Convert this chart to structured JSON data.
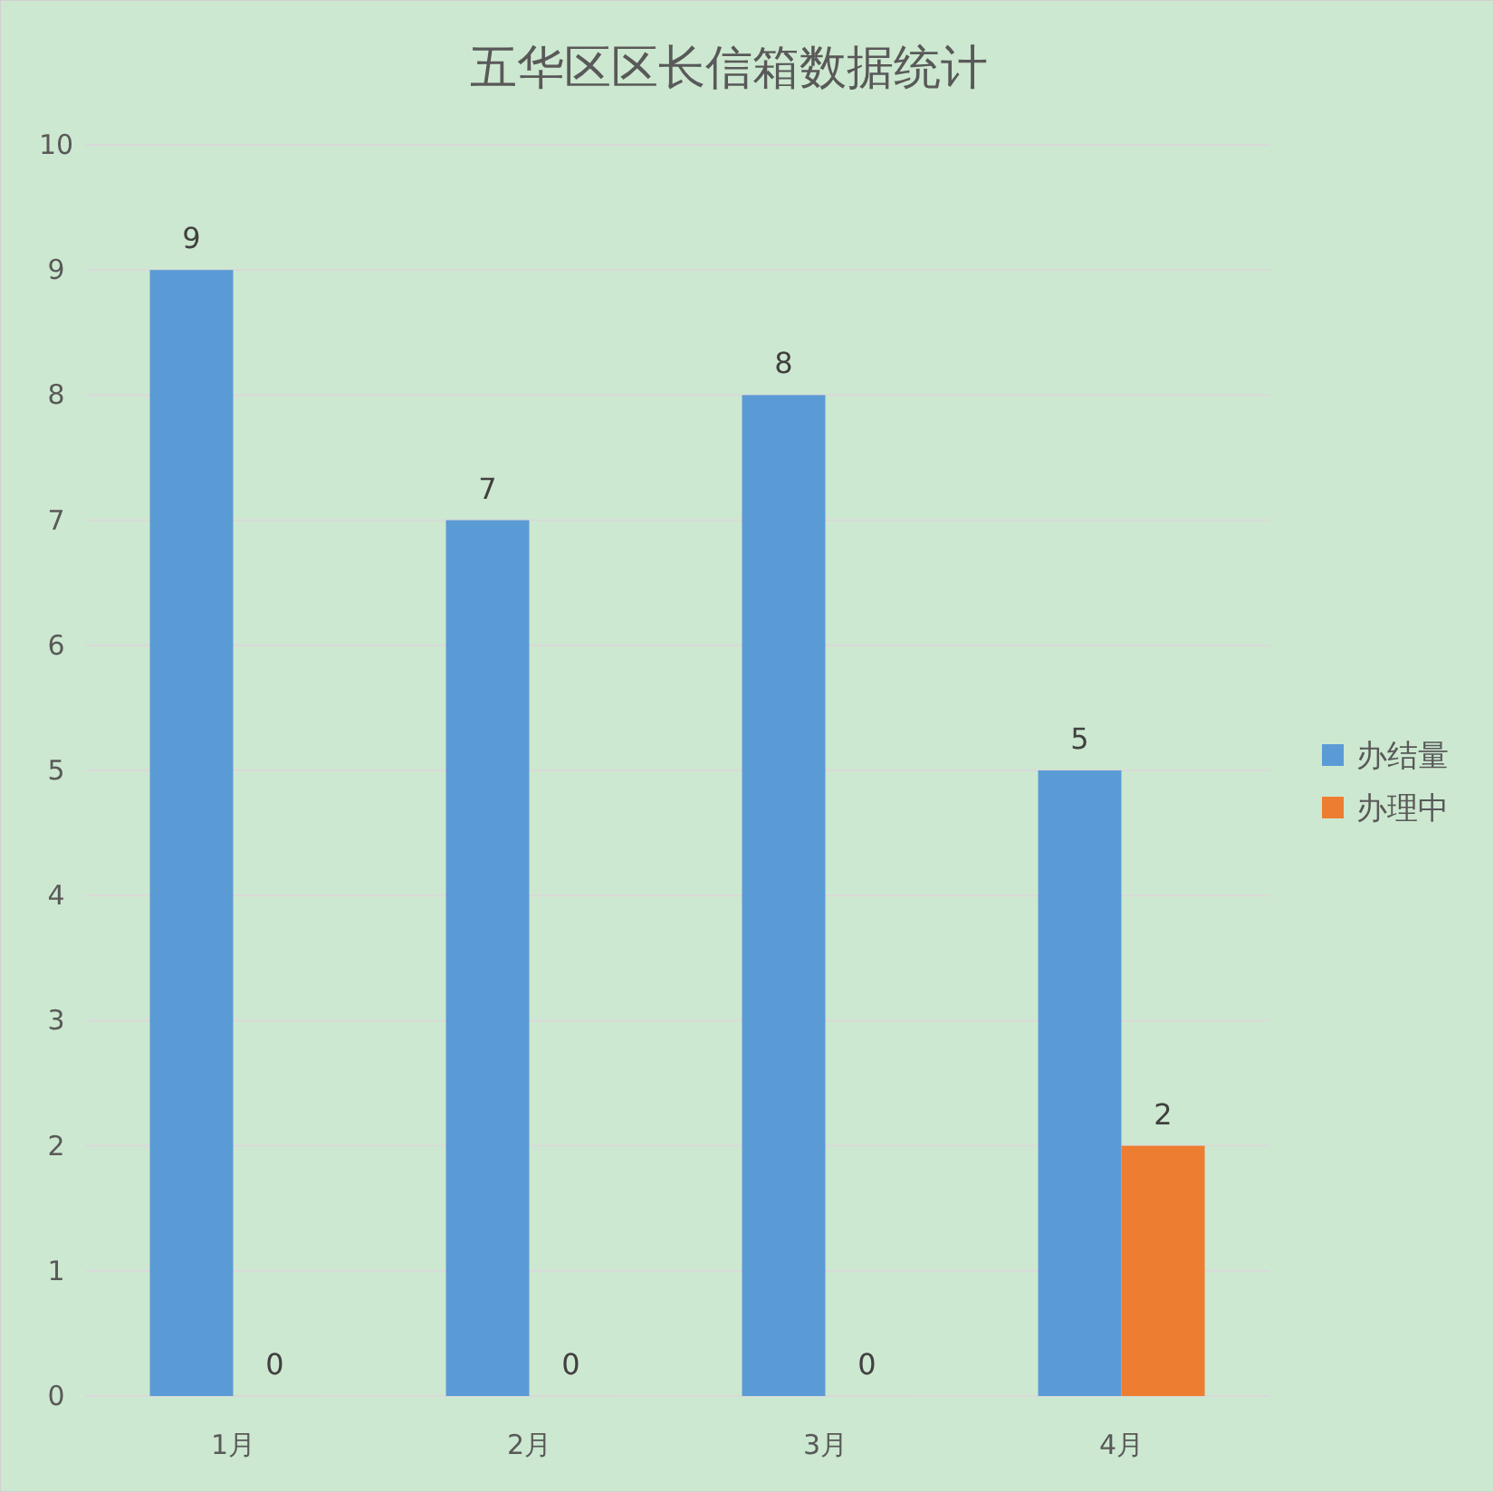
{
  "chart_data": {
    "type": "bar",
    "title": "五华区区长信箱数据统计",
    "categories": [
      "1月",
      "2月",
      "3月",
      "4月"
    ],
    "series": [
      {
        "name": "办结量",
        "color": "#5b9bd5",
        "values": [
          9,
          7,
          8,
          5
        ]
      },
      {
        "name": "办理中",
        "color": "#ed7d31",
        "values": [
          0,
          0,
          0,
          2
        ]
      }
    ],
    "ylim": [
      0,
      10
    ],
    "yticks": [
      0,
      1,
      2,
      3,
      4,
      5,
      6,
      7,
      8,
      9,
      10
    ],
    "grid": "y",
    "legend": "right",
    "data_labels": true
  }
}
